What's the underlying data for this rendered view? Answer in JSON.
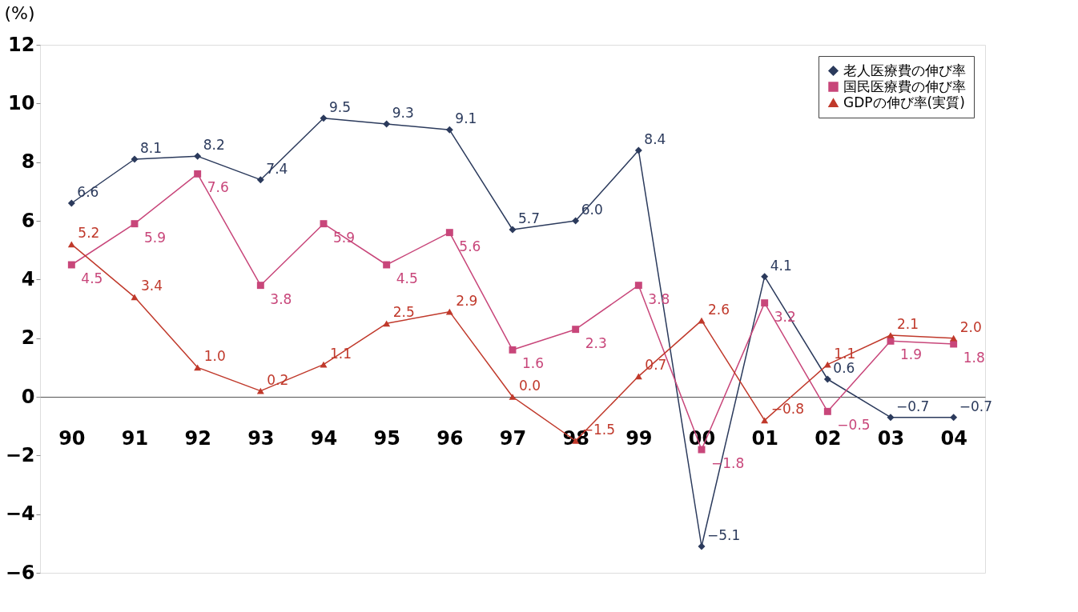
{
  "chart_data": {
    "type": "line",
    "ylabel": "(%)",
    "categories": [
      "90",
      "91",
      "92",
      "93",
      "94",
      "95",
      "96",
      "97",
      "98",
      "99",
      "00",
      "01",
      "02",
      "03",
      "04"
    ],
    "series": [
      {
        "name": "老人医療費の伸び率",
        "color": "#2b3a5c",
        "marker": "diamond",
        "values": [
          6.6,
          8.1,
          8.2,
          7.4,
          9.5,
          9.3,
          9.1,
          5.7,
          6.0,
          8.4,
          -5.1,
          4.1,
          0.6,
          -0.7,
          -0.7
        ],
        "value_labels": [
          "6.6",
          "8.1",
          "8.2",
          "7.4",
          "9.5",
          "9.3",
          "9.1",
          "5.7",
          "6.0",
          "8.4",
          "−5.1",
          "4.1",
          "0.6",
          "−0.7",
          "−0.7"
        ]
      },
      {
        "name": "国民医療費の伸び率",
        "color": "#c8467a",
        "marker": "square",
        "values": [
          4.5,
          5.9,
          7.6,
          3.8,
          5.9,
          4.5,
          5.6,
          1.6,
          2.3,
          3.8,
          -1.8,
          3.2,
          -0.5,
          1.9,
          1.8
        ],
        "value_labels": [
          "4.5",
          "5.9",
          "7.6",
          "3.8",
          "5.9",
          "4.5",
          "5.6",
          "1.6",
          "2.3",
          "3.8",
          "−1.8",
          "3.2",
          "−0.5",
          "1.9",
          "1.8"
        ]
      },
      {
        "name": "GDPの伸び率(実質)",
        "color": "#c0392b",
        "marker": "triangle",
        "values": [
          5.2,
          3.4,
          1.0,
          0.2,
          1.1,
          2.5,
          2.9,
          0.0,
          -1.5,
          0.7,
          2.6,
          -0.8,
          1.1,
          2.1,
          2.0
        ],
        "value_labels": [
          "5.2",
          "3.4",
          "1.0",
          "0.2",
          "1.1",
          "2.5",
          "2.9",
          "0.0",
          "−1.5",
          "0.7",
          "2.6",
          "−0.8",
          "1.1",
          "2.1",
          "2.0"
        ]
      }
    ],
    "ylim": [
      -6,
      12
    ],
    "yticks": [
      -6,
      -4,
      -2,
      0,
      2,
      4,
      6,
      8,
      10,
      12
    ],
    "legend": "top right",
    "grid": false
  }
}
